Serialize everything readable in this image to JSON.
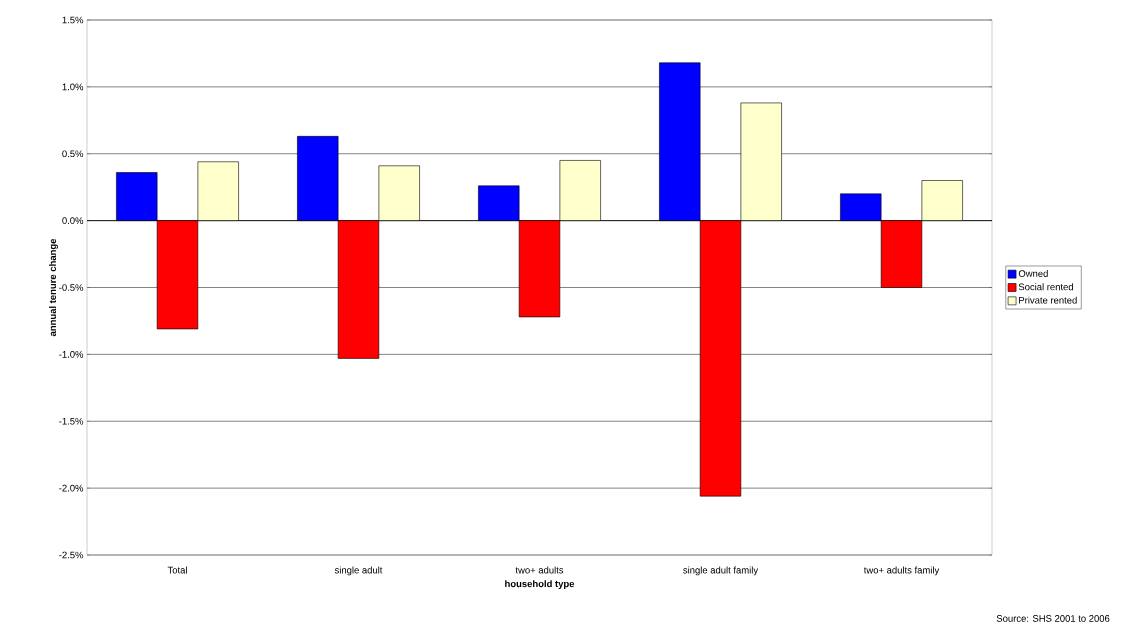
{
  "chart_data": {
    "type": "bar",
    "xlabel": "household type",
    "ylabel": "annual tenure change",
    "categories": [
      "Total",
      "single adult",
      "two+ adults",
      "single adult family",
      "two+ adults family"
    ],
    "series": [
      {
        "name": "Owned",
        "color": "#0000ff",
        "values": [
          0.36,
          0.63,
          0.26,
          1.18,
          0.2
        ]
      },
      {
        "name": "Social rented",
        "color": "#ff0000",
        "values": [
          -0.81,
          -1.03,
          -0.72,
          -2.06,
          -0.5
        ]
      },
      {
        "name": "Private rented",
        "color": "#ffffcc",
        "values": [
          0.44,
          0.41,
          0.45,
          0.88,
          0.3
        ]
      }
    ],
    "ylim": [
      -2.5,
      1.5
    ],
    "yticks": [
      {
        "value": -2.5,
        "label": "-2.5%"
      },
      {
        "value": -2.0,
        "label": "-2.0%"
      },
      {
        "value": -1.5,
        "label": "-1.5%"
      },
      {
        "value": -1.0,
        "label": "-1.0%"
      },
      {
        "value": -0.5,
        "label": "-0.5%"
      },
      {
        "value": 0.0,
        "label": "0.0%"
      },
      {
        "value": 0.5,
        "label": "0.5%"
      },
      {
        "value": 1.0,
        "label": "1.0%"
      },
      {
        "value": 1.5,
        "label": "1.5%"
      }
    ],
    "grid": "y",
    "legend": "right",
    "annotations": [
      "Source: SHS 2001 to 2006"
    ]
  }
}
